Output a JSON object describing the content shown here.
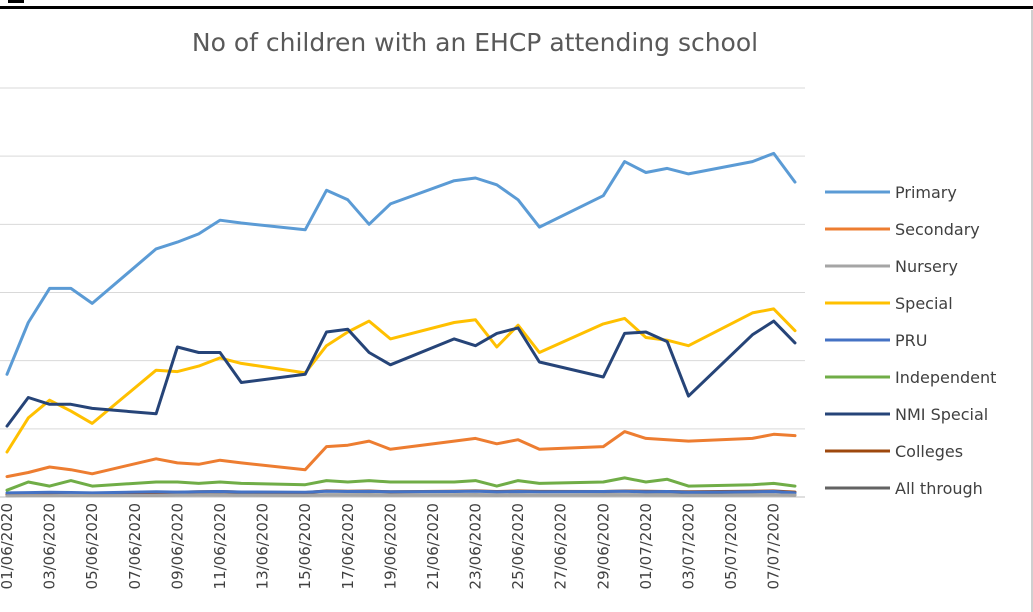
{
  "chart_data": {
    "type": "line",
    "title": "No of children with an EHCP attending school",
    "xlabel": "",
    "ylabel": "",
    "ylim": [
      0,
      3000
    ],
    "grid": true,
    "legend_position": "right",
    "x": [
      "01/06/2020",
      "02/06/2020",
      "03/06/2020",
      "04/06/2020",
      "05/06/2020",
      "08/06/2020",
      "09/06/2020",
      "10/06/2020",
      "11/06/2020",
      "12/06/2020",
      "15/06/2020",
      "16/06/2020",
      "17/06/2020",
      "18/06/2020",
      "19/06/2020",
      "22/06/2020",
      "23/06/2020",
      "24/06/2020",
      "25/06/2020",
      "26/06/2020",
      "29/06/2020",
      "30/06/2020",
      "01/07/2020",
      "02/07/2020",
      "03/07/2020",
      "06/07/2020",
      "07/07/2020",
      "08/07/2020"
    ],
    "x_tick_labels": [
      "01/06/2020",
      "03/06/2020",
      "05/06/2020",
      "07/06/2020",
      "09/06/2020",
      "11/06/2020",
      "13/06/2020",
      "15/06/2020",
      "17/06/2020",
      "19/06/2020",
      "21/06/2020",
      "23/06/2020",
      "25/06/2020",
      "27/06/2020",
      "29/06/2020",
      "01/07/2020",
      "03/07/2020",
      "05/07/2020",
      "07/07/2020"
    ],
    "x_tick_days": [
      0,
      2,
      4,
      6,
      8,
      10,
      12,
      14,
      16,
      18,
      20,
      22,
      24,
      26,
      28,
      30,
      32,
      34,
      36
    ],
    "x_days": [
      0,
      1,
      2,
      3,
      4,
      7,
      8,
      9,
      10,
      11,
      14,
      15,
      16,
      17,
      18,
      21,
      22,
      23,
      24,
      25,
      28,
      29,
      30,
      31,
      32,
      35,
      36,
      37
    ],
    "series": [
      {
        "name": "Primary",
        "color": "#5b9bd5",
        "values": [
          900,
          1280,
          1530,
          1530,
          1420,
          1820,
          1870,
          1930,
          2030,
          2010,
          1960,
          2250,
          2180,
          2000,
          2150,
          2320,
          2340,
          2290,
          2180,
          1980,
          2210,
          2460,
          2380,
          2410,
          2370,
          2460,
          2520,
          2310
        ]
      },
      {
        "name": "Secondary",
        "color": "#ed7d31",
        "values": [
          150,
          180,
          220,
          200,
          170,
          280,
          250,
          240,
          270,
          250,
          200,
          370,
          380,
          410,
          350,
          410,
          430,
          390,
          420,
          350,
          370,
          480,
          430,
          420,
          410,
          430,
          460,
          450
        ]
      },
      {
        "name": "Nursery",
        "color": "#a5a5a5",
        "values": [
          8,
          10,
          10,
          12,
          10,
          12,
          14,
          15,
          14,
          13,
          12,
          15,
          15,
          14,
          13,
          15,
          14,
          12,
          15,
          14,
          14,
          15,
          14,
          14,
          12,
          14,
          15,
          14
        ]
      },
      {
        "name": "Special",
        "color": "#ffc000",
        "values": [
          330,
          580,
          710,
          630,
          540,
          930,
          920,
          960,
          1020,
          980,
          910,
          1110,
          1210,
          1290,
          1160,
          1280,
          1300,
          1100,
          1260,
          1060,
          1270,
          1310,
          1170,
          1150,
          1110,
          1350,
          1380,
          1220
        ]
      },
      {
        "name": "PRU",
        "color": "#4472c4",
        "values": [
          30,
          32,
          35,
          33,
          30,
          38,
          36,
          38,
          40,
          37,
          35,
          42,
          40,
          41,
          38,
          40,
          42,
          38,
          40,
          39,
          40,
          42,
          38,
          40,
          35,
          38,
          40,
          30
        ]
      },
      {
        "name": "Independent",
        "color": "#70ad47",
        "values": [
          50,
          110,
          80,
          120,
          80,
          110,
          110,
          100,
          110,
          100,
          90,
          120,
          110,
          120,
          110,
          110,
          120,
          80,
          120,
          100,
          110,
          140,
          110,
          130,
          80,
          90,
          100,
          80
        ]
      },
      {
        "name": "NMI Special",
        "color": "#264478",
        "values": [
          520,
          730,
          680,
          680,
          650,
          610,
          1100,
          1060,
          1060,
          840,
          900,
          1210,
          1230,
          1060,
          970,
          1160,
          1110,
          1200,
          1240,
          990,
          880,
          1200,
          1210,
          1140,
          740,
          1190,
          1290,
          1130
        ]
      },
      {
        "name": "Colleges",
        "color": "#9e480e",
        "values": [
          20,
          22,
          25,
          24,
          23,
          30,
          35,
          38,
          40,
          36,
          32,
          45,
          42,
          44,
          38,
          42,
          45,
          40,
          44,
          41,
          40,
          44,
          42,
          40,
          38,
          42,
          44,
          36
        ]
      },
      {
        "name": "All through",
        "color": "#636363",
        "values": [
          10,
          12,
          13,
          12,
          12,
          14,
          15,
          16,
          16,
          15,
          14,
          17,
          16,
          17,
          15,
          16,
          17,
          15,
          16,
          15,
          16,
          17,
          16,
          16,
          14,
          16,
          17,
          14
        ]
      }
    ]
  }
}
